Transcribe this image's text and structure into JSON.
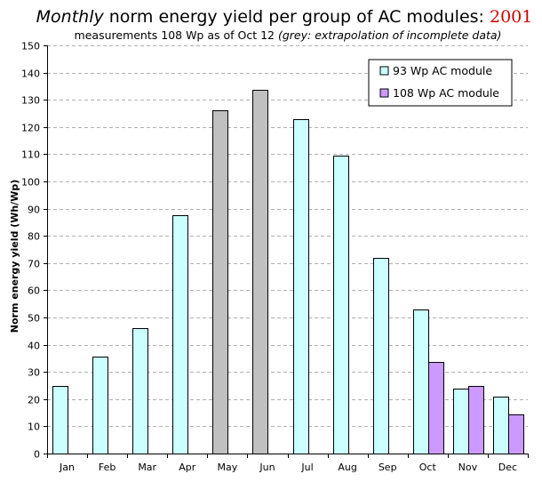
{
  "chart_data": {
    "type": "bar",
    "title": {
      "prefix": "Monthly",
      "main": " norm energy yield per group of AC modules: ",
      "year": "2001"
    },
    "subtitle": {
      "main": "measurements 108 Wp as of Oct 12 ",
      "note": "(grey: extrapolation of incomplete data)"
    },
    "ylabel": "Norm energy yield (Wh/Wp)",
    "xlabel": "",
    "ylim": [
      0,
      150
    ],
    "ytick_step": 10,
    "grid": true,
    "legend_position": "top-right",
    "categories": [
      "Jan",
      "Feb",
      "Mar",
      "Apr",
      "May",
      "Jun",
      "Jul",
      "Aug",
      "Sep",
      "Oct",
      "Nov",
      "Dec"
    ],
    "series": [
      {
        "name": "93 Wp AC module",
        "color": "#ccffff",
        "values": [
          25,
          35.5,
          46,
          87.5,
          126,
          133.5,
          123,
          109.5,
          72,
          53,
          24,
          21
        ],
        "extrapolated": [
          false,
          false,
          false,
          false,
          true,
          true,
          false,
          false,
          false,
          false,
          false,
          false
        ]
      },
      {
        "name": "108 Wp AC module",
        "color": "#cc99ff",
        "values": [
          null,
          null,
          null,
          null,
          null,
          null,
          null,
          null,
          null,
          33.5,
          25,
          14.5
        ],
        "extrapolated": [
          false,
          false,
          false,
          false,
          false,
          false,
          false,
          false,
          false,
          false,
          false,
          false
        ]
      }
    ],
    "extrapolated_color": "#c0c0c0"
  }
}
